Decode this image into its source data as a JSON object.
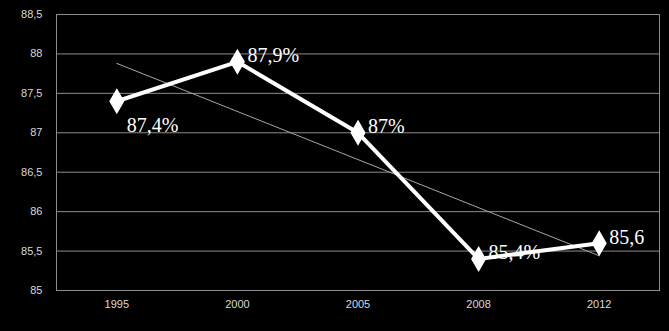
{
  "chart_data": {
    "type": "line",
    "categories": [
      "1995",
      "2000",
      "2005",
      "2008",
      "2012"
    ],
    "values": [
      87.4,
      87.9,
      87,
      85.4,
      85.6
    ],
    "value_labels": [
      "87,4%",
      "87,9%",
      "87%",
      "85,4%",
      "85,6"
    ],
    "color": "#ffffff",
    "marker": "diamond",
    "ylim": [
      85,
      88.5
    ],
    "yticks": [
      85,
      {
        "value": 85.5,
        "label": "85,5"
      },
      86,
      {
        "value": 86.5,
        "label": "86,5"
      },
      87,
      {
        "value": 87.5,
        "label": "87,5"
      },
      88,
      {
        "value": 88.5,
        "label": "88,5"
      }
    ],
    "grid": true,
    "data_labels": true
  }
}
